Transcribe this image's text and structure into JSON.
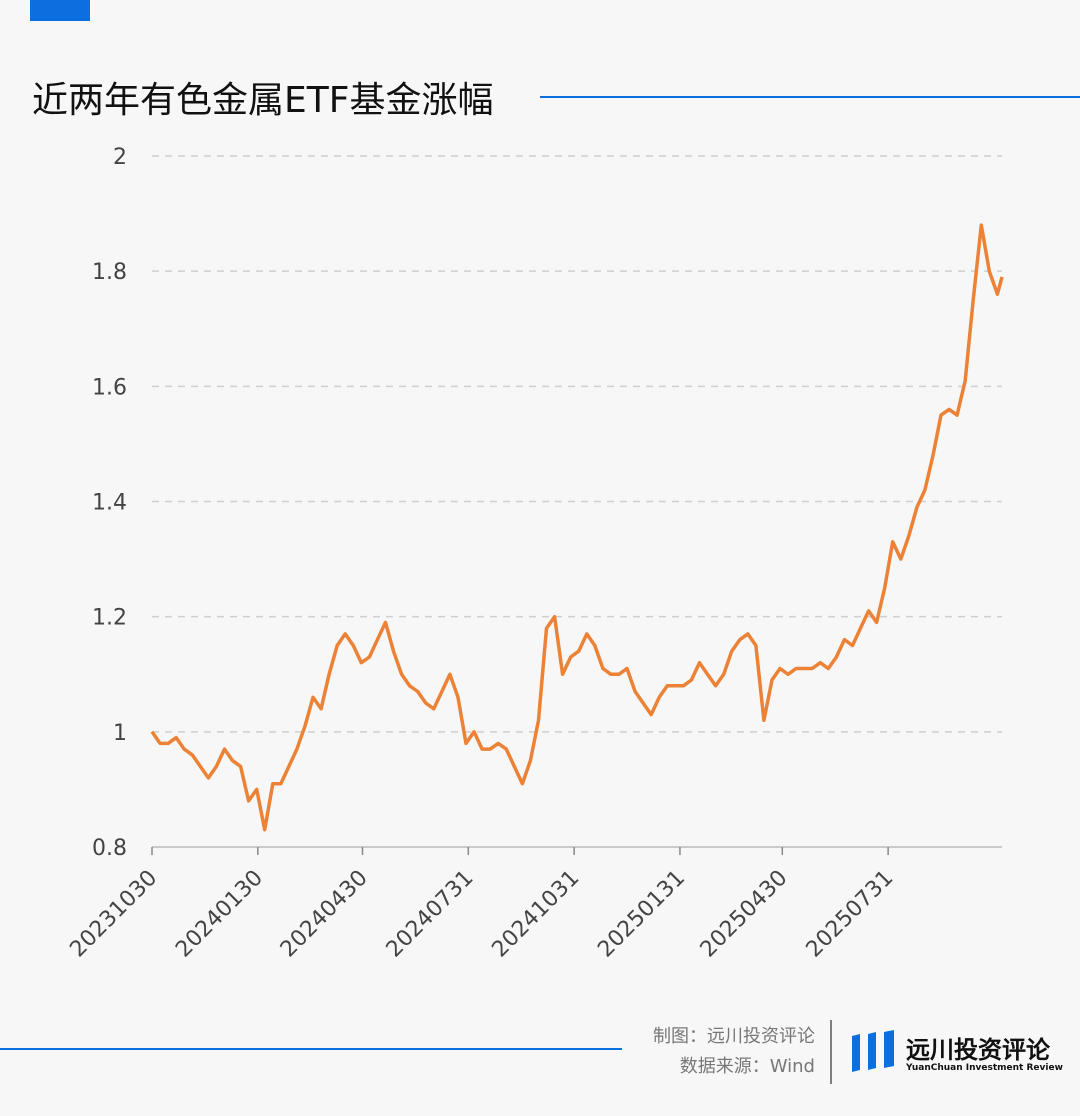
{
  "chart_data": {
    "type": "line",
    "title": "近两年有色金属ETF基金涨幅",
    "x": [
      "20231030",
      "20231106",
      "20231113",
      "20231120",
      "20231127",
      "20231204",
      "20231211",
      "20231218",
      "20231225",
      "20240101",
      "20240108",
      "20240115",
      "20240122",
      "20240129",
      "20240205",
      "20240212",
      "20240219",
      "20240226",
      "20240304",
      "20240311",
      "20240318",
      "20240325",
      "20240401",
      "20240408",
      "20240415",
      "20240422",
      "20240429",
      "20240506",
      "20240513",
      "20240520",
      "20240527",
      "20240603",
      "20240610",
      "20240617",
      "20240624",
      "20240701",
      "20240708",
      "20240715",
      "20240722",
      "20240729",
      "20240805",
      "20240812",
      "20240819",
      "20240826",
      "20240902",
      "20240909",
      "20240916",
      "20240923",
      "20240930",
      "20241007",
      "20241014",
      "20241021",
      "20241028",
      "20241104",
      "20241111",
      "20241118",
      "20241125",
      "20241202",
      "20241209",
      "20241216",
      "20241223",
      "20241230",
      "20250106",
      "20250113",
      "20250120",
      "20250127",
      "20250203",
      "20250210",
      "20250217",
      "20250224",
      "20250303",
      "20250310",
      "20250317",
      "20250324",
      "20250331",
      "20250407",
      "20250414",
      "20250421",
      "20250428",
      "20250505",
      "20250512",
      "20250519",
      "20250526",
      "20250602",
      "20250609",
      "20250616",
      "20250623",
      "20250630",
      "20250707",
      "20250714",
      "20250721",
      "20250728",
      "20250804",
      "20250811",
      "20250818",
      "20250825",
      "20250901",
      "20250908",
      "20250915",
      "20250922",
      "20250929",
      "20251006",
      "20251013",
      "20251020",
      "20251027",
      "20251103",
      "20251107"
    ],
    "values": [
      1.0,
      0.98,
      0.98,
      0.99,
      0.97,
      0.96,
      0.94,
      0.92,
      0.94,
      0.97,
      0.95,
      0.94,
      0.88,
      0.9,
      0.83,
      0.91,
      0.91,
      0.94,
      0.97,
      1.01,
      1.06,
      1.04,
      1.1,
      1.15,
      1.17,
      1.15,
      1.12,
      1.13,
      1.16,
      1.19,
      1.14,
      1.1,
      1.08,
      1.07,
      1.05,
      1.04,
      1.07,
      1.1,
      1.06,
      0.98,
      1.0,
      0.97,
      0.97,
      0.98,
      0.97,
      0.94,
      0.91,
      0.95,
      1.02,
      1.18,
      1.2,
      1.1,
      1.13,
      1.14,
      1.17,
      1.15,
      1.11,
      1.1,
      1.1,
      1.11,
      1.07,
      1.05,
      1.03,
      1.06,
      1.08,
      1.08,
      1.08,
      1.09,
      1.12,
      1.1,
      1.08,
      1.1,
      1.14,
      1.16,
      1.17,
      1.15,
      1.02,
      1.09,
      1.11,
      1.1,
      1.11,
      1.11,
      1.11,
      1.12,
      1.11,
      1.13,
      1.16,
      1.15,
      1.18,
      1.21,
      1.19,
      1.25,
      1.33,
      1.3,
      1.34,
      1.39,
      1.42,
      1.48,
      1.55,
      1.56,
      1.55,
      1.61,
      1.75,
      1.88,
      1.8,
      1.76,
      1.79
    ],
    "color": "#ec8236",
    "xlim": [
      "20231030",
      "20251107"
    ],
    "xticks": [
      "20231030",
      "20240130",
      "20240430",
      "20240731",
      "20241031",
      "20250131",
      "20250430",
      "20250731"
    ],
    "ylim": [
      0.8,
      2
    ],
    "yticks": [
      0.8,
      1,
      1.2,
      1.4,
      1.6,
      1.8,
      2
    ],
    "grid": true
  },
  "footer": {
    "credit": "制图：远川投资评论",
    "source": "数据来源：Wind",
    "logo_name": "远川投资评论",
    "logo_sub": "YuanChuan Investment Review"
  }
}
